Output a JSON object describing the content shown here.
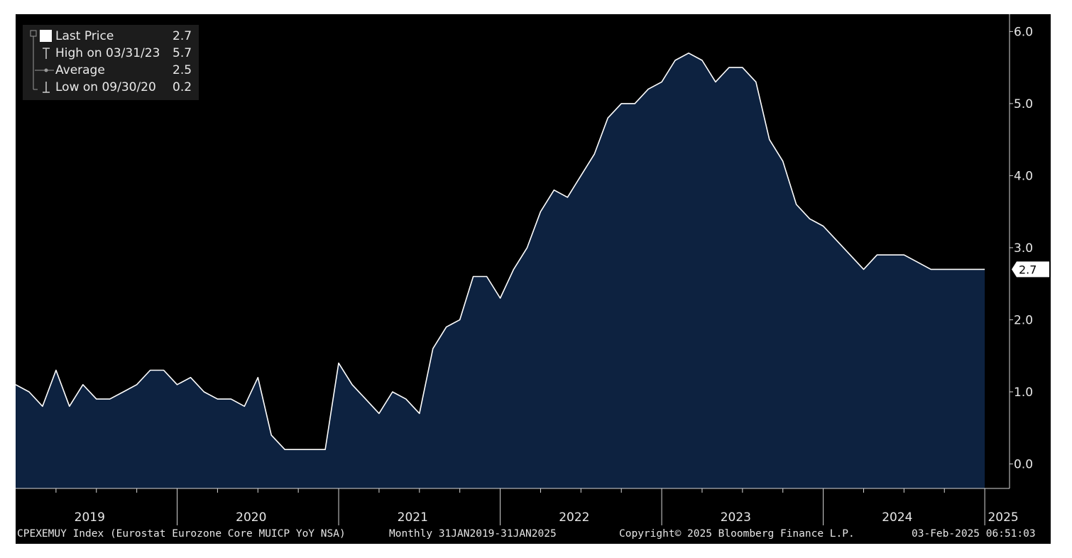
{
  "legend": {
    "items": [
      {
        "label": "Last Price",
        "value": "2.7",
        "icon": "filled-square-icon"
      },
      {
        "label": "High on 03/31/23",
        "value": "5.7",
        "icon": "high-marker-icon"
      },
      {
        "label": "Average",
        "value": "2.5",
        "icon": "average-marker-icon"
      },
      {
        "label": "Low on 09/30/20",
        "value": "0.2",
        "icon": "low-marker-icon"
      }
    ]
  },
  "footer": {
    "index": "CPEXEMUY Index (Eurostat Eurozone Core MUICP YoY NSA)",
    "period": "Monthly 31JAN2019-31JAN2025",
    "copyright": "Copyright© 2025 Bloomberg Finance L.P.",
    "timestamp": "03-Feb-2025 06:51:03"
  },
  "colors": {
    "background": "#000000",
    "area_fill": "#0d2240",
    "line": "#ffffff",
    "text": "#e8e8e8",
    "legend_bg": "#1c1c1c"
  },
  "chart_data": {
    "type": "area",
    "title": "",
    "xlabel": "",
    "ylabel": "",
    "y_axis_side": "right",
    "ylim": [
      -0.34,
      6.24
    ],
    "yticks": [
      0.0,
      1.0,
      2.0,
      3.0,
      4.0,
      5.0,
      6.0
    ],
    "ytick_labels": [
      "0.0",
      "1.0",
      "2.0",
      "3.0",
      "4.0",
      "5.0",
      "6.0"
    ],
    "x_categories": [
      "2019",
      "2020",
      "2021",
      "2022",
      "2023",
      "2024",
      "2025"
    ],
    "last_value_label": "2.7",
    "grid": false,
    "legend_position": "top-left",
    "series": [
      {
        "name": "Last Price",
        "frequency": "monthly",
        "start": "2019-01",
        "end": "2025-01",
        "values": [
          1.1,
          1.0,
          0.8,
          1.3,
          0.8,
          1.1,
          0.9,
          0.9,
          1.0,
          1.1,
          1.3,
          1.3,
          1.1,
          1.2,
          1.0,
          0.9,
          0.9,
          0.8,
          1.2,
          0.4,
          0.2,
          0.2,
          0.2,
          0.2,
          1.4,
          1.1,
          0.9,
          0.7,
          1.0,
          0.9,
          0.7,
          1.6,
          1.9,
          2.0,
          2.6,
          2.6,
          2.3,
          2.7,
          3.0,
          3.5,
          3.8,
          3.7,
          4.0,
          4.3,
          4.8,
          5.0,
          5.0,
          5.2,
          5.3,
          5.6,
          5.7,
          5.6,
          5.3,
          5.5,
          5.5,
          5.3,
          4.5,
          4.2,
          3.6,
          3.4,
          3.3,
          3.1,
          2.9,
          2.7,
          2.9,
          2.9,
          2.9,
          2.8,
          2.7,
          2.7,
          2.7,
          2.7,
          2.7
        ]
      }
    ]
  }
}
